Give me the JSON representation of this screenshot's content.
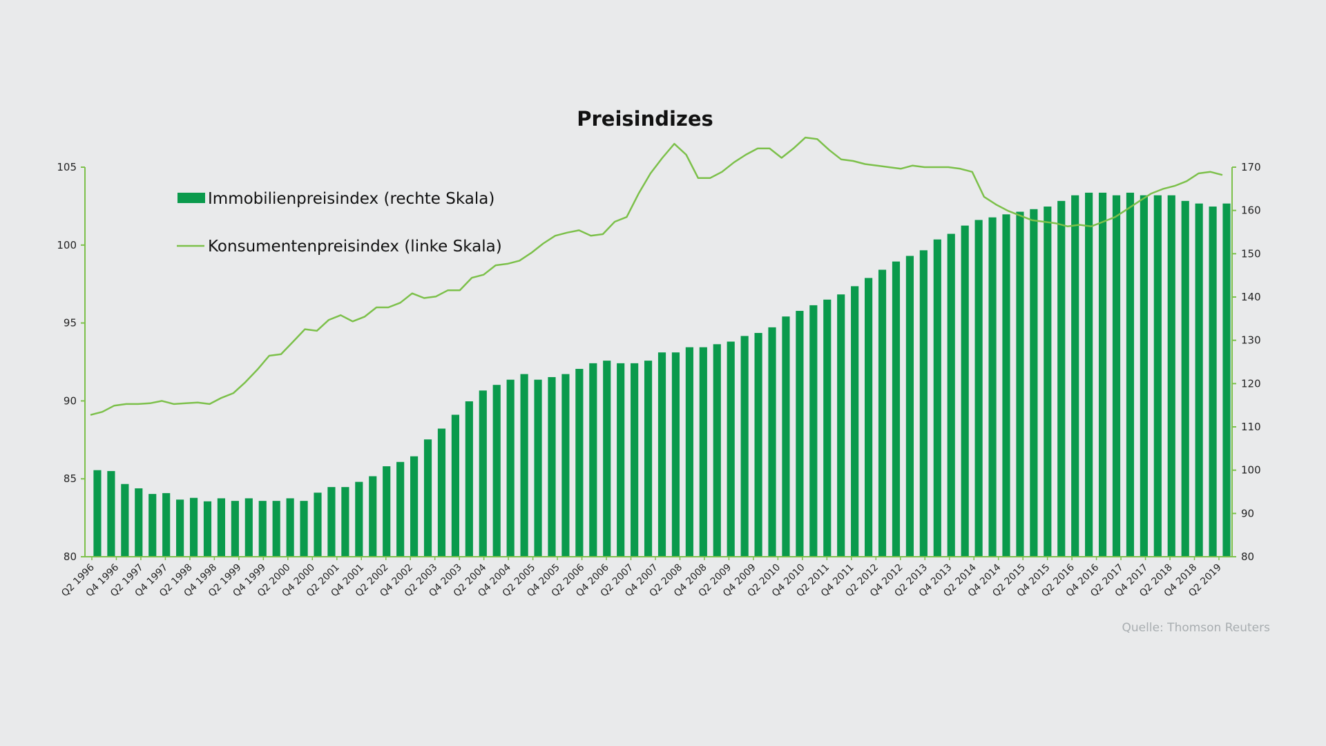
{
  "colors": {
    "bar": "#0a9a4c",
    "line": "#7cc04a",
    "axis": "#7cc04a",
    "background": "#e9eaeb"
  },
  "chart_data": {
    "type": "bar",
    "title": "Preisindizes",
    "source": "Quelle: Thomson Reuters",
    "legend_position": "top-left",
    "grid": false,
    "x_tick_labels": [
      "Q2 1996",
      "Q4 1996",
      "Q2 1997",
      "Q4 1997",
      "Q2 1998",
      "Q4 1998",
      "Q2 1999",
      "Q4 1999",
      "Q2 2000",
      "Q4 2000",
      "Q2 2001",
      "Q4 2001",
      "Q2 2002",
      "Q4 2002",
      "Q2 2003",
      "Q4 2003",
      "Q2 2004",
      "Q4 2004",
      "Q2 2005",
      "Q4 2005",
      "Q2 2006",
      "Q4 2006",
      "Q2 2007",
      "Q4 2007",
      "Q2 2008",
      "Q4 2008",
      "Q2 2009",
      "Q4 2009",
      "Q2 2010",
      "Q4 2010",
      "Q2 2011",
      "Q4 2011",
      "Q2 2012",
      "Q4 2012",
      "Q2 2013",
      "Q4 2013",
      "Q2 2014",
      "Q4 2014",
      "Q2 2015",
      "Q4 2015",
      "Q2 2016",
      "Q4 2016",
      "Q2 2017",
      "Q4 2017",
      "Q2 2018",
      "Q4 2018",
      "Q2 2019"
    ],
    "y_left": {
      "ylim": [
        80,
        105
      ],
      "ticks": [
        "80",
        "85",
        "90",
        "95",
        "100",
        "105"
      ]
    },
    "y_right": {
      "ylim": [
        80,
        170
      ],
      "ticks": [
        "80",
        "90",
        "100",
        "110",
        "120",
        "130",
        "140",
        "150",
        "160",
        "170"
      ]
    },
    "series": [
      {
        "name": "Immobilienpreisindex (rechte Skala)",
        "type": "bar",
        "axis": "right",
        "values": [
          100,
          99.8,
          96.8,
          95.8,
          94.5,
          94.7,
          93.2,
          93.6,
          92.8,
          93.5,
          92.9,
          93.5,
          92.9,
          92.9,
          93.5,
          92.9,
          94.8,
          96.1,
          96.1,
          97.3,
          98.6,
          100.9,
          101.9,
          103.2,
          107.1,
          109.6,
          112.8,
          115.9,
          118.4,
          119.7,
          120.9,
          122.2,
          120.9,
          121.5,
          122.2,
          123.4,
          124.7,
          125.3,
          124.7,
          124.7,
          125.3,
          127.2,
          127.2,
          128.4,
          128.4,
          129.1,
          129.7,
          131,
          131.7,
          133,
          135.5,
          136.8,
          138.1,
          139.4,
          140.6,
          142.5,
          144.4,
          146.3,
          148.2,
          149.5,
          150.8,
          153.3,
          154.6,
          156.5,
          157.8,
          158.4,
          159.1,
          159.7,
          160.3,
          160.9,
          162.2,
          163.5,
          164.1,
          164.1,
          163.5,
          164.1,
          163.5,
          163.5,
          163.5,
          162.2,
          161.6,
          160.9,
          161.6
        ]
      },
      {
        "name": "Konsumentenpreisindex (linke Skala)",
        "type": "line",
        "axis": "left",
        "values": [
          89.1,
          89.3,
          89.7,
          89.8,
          89.8,
          89.85,
          90,
          89.8,
          89.85,
          89.9,
          89.8,
          90.2,
          90.5,
          91.2,
          92,
          92.9,
          93,
          93.8,
          94.6,
          94.5,
          95.2,
          95.5,
          95.1,
          95.4,
          96,
          96,
          96.3,
          96.9,
          96.6,
          96.7,
          97.1,
          97.1,
          97.9,
          98.1,
          98.7,
          98.8,
          99,
          99.5,
          100.1,
          100.6,
          100.8,
          100.95,
          100.6,
          100.7,
          101.5,
          101.8,
          103.3,
          104.6,
          105.6,
          106.5,
          105.8,
          104.3,
          104.3,
          104.7,
          105.3,
          105.8,
          106.2,
          106.2,
          105.6,
          106.2,
          106.9,
          106.8,
          106.1,
          105.5,
          105.4,
          105.2,
          105.1,
          105,
          104.9,
          105.1,
          105.0,
          105.0,
          105.0,
          104.9,
          104.7,
          103.1,
          102.6,
          102.2,
          101.9,
          101.6,
          101.5,
          101.4,
          101.2,
          101.3,
          101.2,
          101.5,
          101.8,
          102.3,
          102.8,
          103.3,
          103.6,
          103.8,
          104.1,
          104.6,
          104.7,
          104.5
        ]
      }
    ]
  }
}
